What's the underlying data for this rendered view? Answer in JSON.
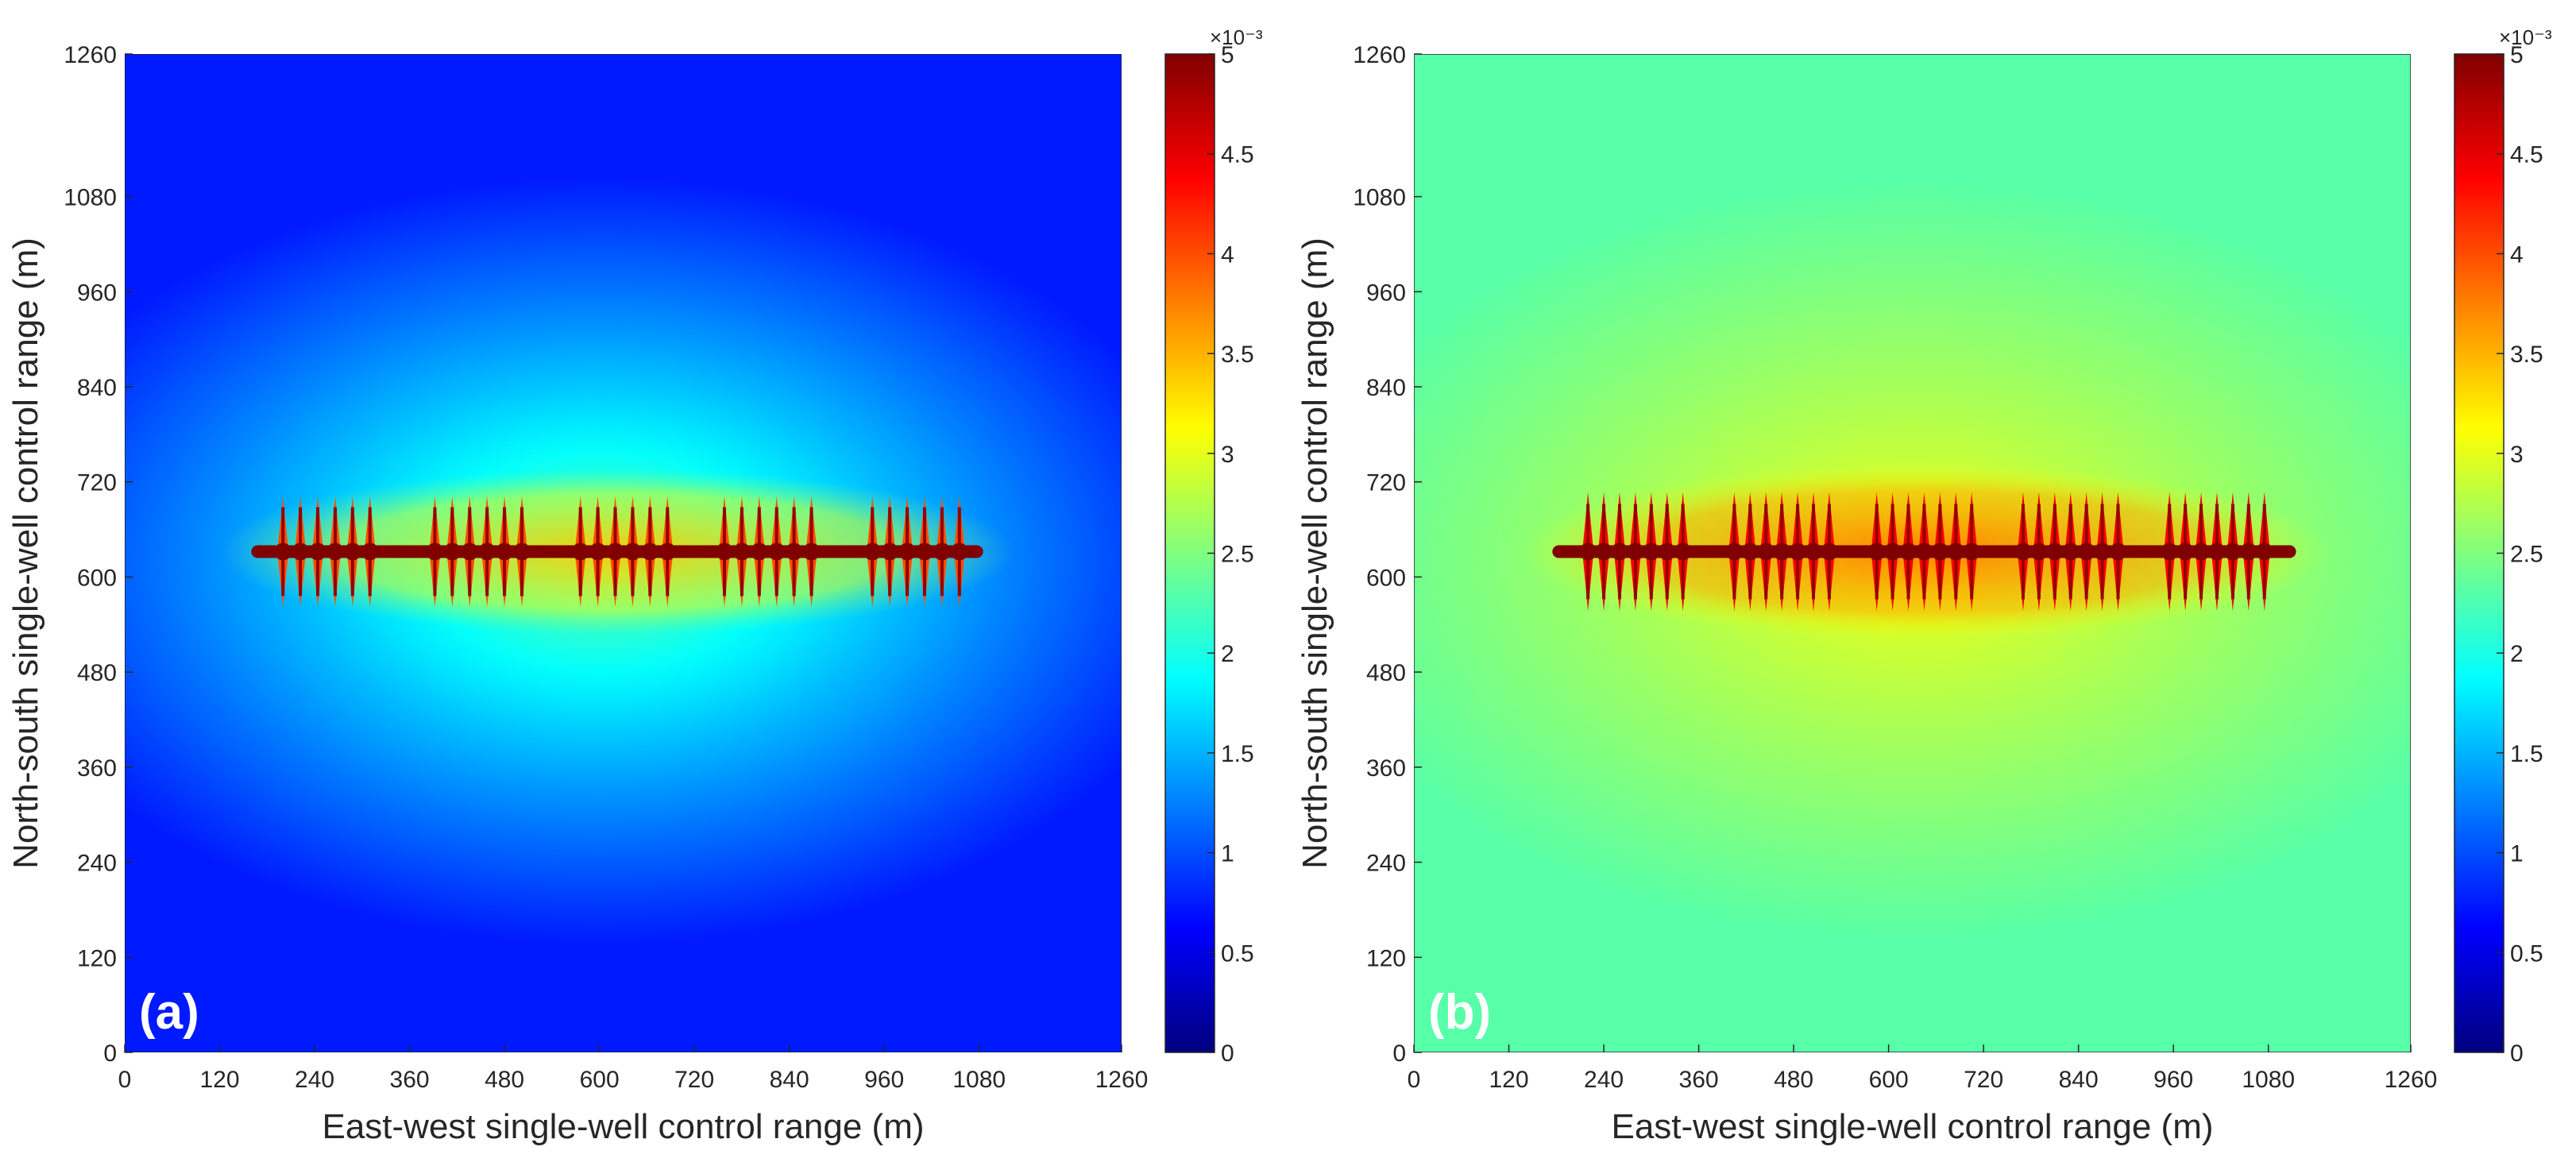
{
  "chart_data": [
    {
      "type": "heatmap",
      "panel_label": "(a)",
      "xlabel": "East-west single-well control range (m)",
      "ylabel": "North-south single-well control range (m)",
      "xlim": [
        0,
        1260
      ],
      "ylim": [
        0,
        1260
      ],
      "xticks": [
        0,
        120,
        240,
        360,
        480,
        600,
        720,
        840,
        960,
        1080,
        1260
      ],
      "yticks": [
        0,
        120,
        240,
        360,
        480,
        600,
        720,
        840,
        960,
        1080,
        1260
      ],
      "colorbar": {
        "range": [
          0,
          5
        ],
        "ticks": [
          "0",
          "0.5",
          "1",
          "1.5",
          "2",
          "2.5",
          "3",
          "3.5",
          "4",
          "4.5",
          "5"
        ],
        "exponent_label": "×10⁻³",
        "colormap": "jet"
      },
      "field": {
        "background_value": 0.75,
        "center_value": 2.5,
        "halo_center": [
          600,
          620
        ],
        "wellbore": {
          "x_start": 160,
          "x_end": 1085,
          "y": 632,
          "value": 5
        },
        "fracture_clusters": [
          [
            200,
            222,
            244,
            266,
            288,
            310
          ],
          [
            392,
            414,
            436,
            458,
            480,
            502
          ],
          [
            576,
            598,
            620,
            642,
            664,
            686
          ],
          [
            758,
            780,
            802,
            824,
            846,
            868
          ],
          [
            945,
            967,
            989,
            1011,
            1033,
            1055
          ]
        ],
        "fracture_half_length": 70,
        "fracture_value": 4.0
      }
    },
    {
      "type": "heatmap",
      "panel_label": "(b)",
      "xlabel": "East-west single-well control range (m)",
      "ylabel": "North-south single-well control range (m)",
      "xlim": [
        0,
        1260
      ],
      "ylim": [
        0,
        1260
      ],
      "xticks": [
        0,
        120,
        240,
        360,
        480,
        600,
        720,
        840,
        960,
        1080,
        1260
      ],
      "yticks": [
        0,
        120,
        240,
        360,
        480,
        600,
        720,
        840,
        960,
        1080,
        1260
      ],
      "colorbar": {
        "range": [
          0,
          5
        ],
        "ticks": [
          "0",
          "0.5",
          "1",
          "1.5",
          "2",
          "2.5",
          "3",
          "3.5",
          "4",
          "4.5",
          "5"
        ],
        "exponent_label": "×10⁻³",
        "colormap": "jet"
      },
      "field": {
        "background_value": 2.3,
        "center_value": 3.1,
        "halo_center": [
          630,
          620
        ],
        "wellbore": {
          "x_start": 175,
          "x_end": 1115,
          "y": 632,
          "value": 5
        },
        "fracture_clusters": [
          [
            220,
            240,
            260,
            280,
            300,
            320,
            340
          ],
          [
            405,
            425,
            445,
            465,
            485,
            505,
            525
          ],
          [
            585,
            605,
            625,
            645,
            665,
            685,
            705
          ],
          [
            770,
            790,
            810,
            830,
            850,
            870,
            890
          ],
          [
            955,
            975,
            995,
            1015,
            1035,
            1055,
            1075
          ]
        ],
        "fracture_half_length": 75,
        "fracture_value": 4.4
      }
    }
  ]
}
